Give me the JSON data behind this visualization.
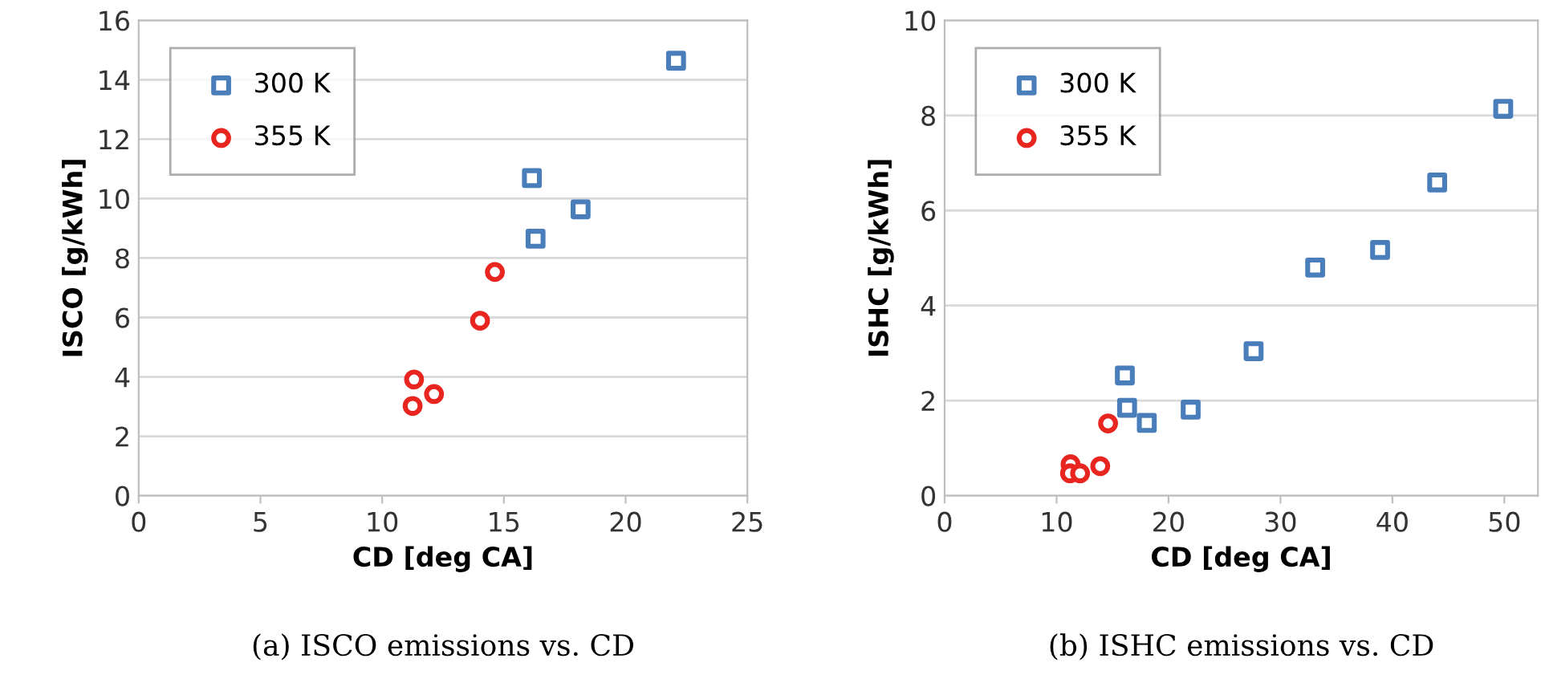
{
  "chart_data": [
    {
      "type": "scatter",
      "xlabel": "CD [deg CA]",
      "ylabel": "ISCO [g/kWh]",
      "xlim": [
        0,
        25
      ],
      "xticks": [
        0,
        5,
        10,
        15,
        20,
        25
      ],
      "ylim": [
        0,
        16
      ],
      "yticks": [
        0,
        2,
        4,
        6,
        8,
        10,
        12,
        14,
        16
      ],
      "grid": "y",
      "legend": "top left",
      "annotations": [
        "(a) ISCO emissions vs. CD"
      ],
      "series": [
        {
          "name": "300 K",
          "color": "#4a7ebb",
          "marker": "square",
          "x": [
            16.15,
            16.3,
            18.15,
            22.07
          ],
          "values": [
            10.69,
            8.65,
            9.64,
            14.64
          ]
        },
        {
          "name": "355 K",
          "color": "#e8251f",
          "marker": "circle",
          "x": [
            11.31,
            11.25,
            12.13,
            14.02,
            14.63
          ],
          "values": [
            3.91,
            3.02,
            3.42,
            5.89,
            7.53
          ]
        }
      ]
    },
    {
      "type": "scatter",
      "xlabel": "CD [deg CA]",
      "ylabel": "ISHC [g/kWh]",
      "xlim": [
        0,
        53
      ],
      "xticks": [
        0,
        10,
        20,
        30,
        40,
        50
      ],
      "ylim": [
        0,
        10
      ],
      "yticks": [
        0,
        2,
        4,
        6,
        8,
        10
      ],
      "grid": "y",
      "legend": "top left",
      "annotations": [
        "(b) ISHC emissions vs. CD"
      ],
      "series": [
        {
          "name": "300 K",
          "color": "#4a7ebb",
          "marker": "square",
          "x": [
            16.1,
            16.3,
            18.06,
            21.98,
            27.6,
            33.1,
            38.9,
            44.0,
            49.9
          ],
          "values": [
            2.53,
            1.85,
            1.53,
            1.81,
            3.04,
            4.8,
            5.17,
            6.59,
            8.14
          ]
        },
        {
          "name": "355 K",
          "color": "#e8251f",
          "marker": "circle",
          "x": [
            11.25,
            11.2,
            12.1,
            13.9,
            14.6
          ],
          "values": [
            0.66,
            0.47,
            0.47,
            0.62,
            1.52
          ]
        }
      ]
    }
  ]
}
